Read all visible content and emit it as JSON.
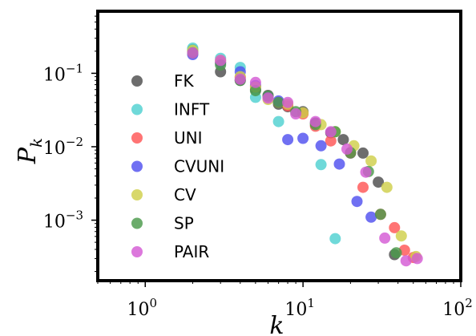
{
  "chart_data": {
    "type": "scatter",
    "xlabel": "k",
    "ylabel": "P_k",
    "xscale": "log",
    "yscale": "log",
    "xlim": [
      0.5,
      100
    ],
    "ylim": [
      0.00015,
      0.7
    ],
    "xticks": [
      {
        "value": 1,
        "label": "10^0"
      },
      {
        "value": 10,
        "label": "10^1"
      },
      {
        "value": 100,
        "label": "10^2"
      }
    ],
    "yticks": [
      {
        "value": 0.1,
        "label": "10^-1"
      },
      {
        "value": 0.01,
        "label": "10^-2"
      },
      {
        "value": 0.001,
        "label": "10^-3"
      }
    ],
    "grid": false,
    "legend_position": "left",
    "series": [
      {
        "name": "FK",
        "color": "#4d4d4d",
        "points": [
          [
            2,
            0.21
          ],
          [
            3,
            0.105
          ],
          [
            4,
            0.08
          ],
          [
            5,
            0.06
          ],
          [
            6,
            0.05
          ],
          [
            7,
            0.038
          ],
          [
            8,
            0.035
          ],
          [
            10,
            0.03
          ],
          [
            12,
            0.021
          ],
          [
            15,
            0.0155
          ],
          [
            18,
            0.0125
          ],
          [
            20,
            0.0082
          ],
          [
            24,
            0.0082
          ],
          [
            30,
            0.0033
          ],
          [
            38,
            0.00034
          ]
        ]
      },
      {
        "name": "INFT",
        "color": "#4fd1d1",
        "points": [
          [
            2,
            0.22
          ],
          [
            3,
            0.16
          ],
          [
            4,
            0.12
          ],
          [
            5,
            0.047
          ],
          [
            7,
            0.022
          ],
          [
            13,
            0.0057
          ],
          [
            16,
            0.00056
          ]
        ]
      },
      {
        "name": "UNI",
        "color": "#ff5555",
        "points": [
          [
            2,
            0.19
          ],
          [
            3,
            0.14
          ],
          [
            4,
            0.088
          ],
          [
            5,
            0.065
          ],
          [
            6,
            0.048
          ],
          [
            7,
            0.04
          ],
          [
            8,
            0.036
          ],
          [
            10,
            0.028
          ],
          [
            12,
            0.019
          ],
          [
            15,
            0.012
          ],
          [
            20,
            0.0083
          ],
          [
            24,
            0.0028
          ],
          [
            31,
            0.0012
          ],
          [
            38,
            0.00079
          ],
          [
            44,
            0.00039
          ],
          [
            50,
            0.00031
          ]
        ]
      },
      {
        "name": "CVUNI",
        "color": "#5151ef",
        "points": [
          [
            2,
            0.18
          ],
          [
            3,
            0.14
          ],
          [
            4,
            0.105
          ],
          [
            5,
            0.068
          ],
          [
            6,
            0.048
          ],
          [
            7,
            0.042
          ],
          [
            8,
            0.0125
          ],
          [
            10,
            0.013
          ],
          [
            13,
            0.0103
          ],
          [
            17,
            0.0058
          ],
          [
            22,
            0.0018
          ],
          [
            27,
            0.0011
          ]
        ]
      },
      {
        "name": "CV",
        "color": "#cfcf4a",
        "points": [
          [
            2,
            0.205
          ],
          [
            3,
            0.15
          ],
          [
            4,
            0.09
          ],
          [
            5,
            0.065
          ],
          [
            6,
            0.044
          ],
          [
            8,
            0.038
          ],
          [
            10,
            0.029
          ],
          [
            13,
            0.02
          ],
          [
            16,
            0.016
          ],
          [
            21,
            0.0103
          ],
          [
            27,
            0.0064
          ],
          [
            34,
            0.0028
          ],
          [
            42,
            0.00061
          ],
          [
            52,
            0.00032
          ]
        ]
      },
      {
        "name": "SP",
        "color": "#4a9a4a",
        "points": [
          [
            2,
            0.19
          ],
          [
            3,
            0.13
          ],
          [
            4,
            0.08
          ],
          [
            5,
            0.058
          ],
          [
            6,
            0.049
          ],
          [
            7,
            0.04
          ],
          [
            9,
            0.03
          ],
          [
            12,
            0.02
          ],
          [
            16,
            0.016
          ],
          [
            20,
            0.0083
          ],
          [
            26,
            0.0046
          ],
          [
            31,
            0.0012
          ],
          [
            39,
            0.00036
          ]
        ]
      },
      {
        "name": "PAIR",
        "color": "#d45ad4",
        "points": [
          [
            2,
            0.19
          ],
          [
            3,
            0.15
          ],
          [
            4,
            0.083
          ],
          [
            5,
            0.075
          ],
          [
            6,
            0.046
          ],
          [
            8,
            0.04
          ],
          [
            9,
            0.028
          ],
          [
            12,
            0.022
          ],
          [
            15,
            0.016
          ],
          [
            19,
            0.0093
          ],
          [
            25,
            0.0045
          ],
          [
            33,
            0.00057
          ],
          [
            45,
            0.00028
          ],
          [
            53,
            0.0003
          ]
        ]
      }
    ]
  }
}
